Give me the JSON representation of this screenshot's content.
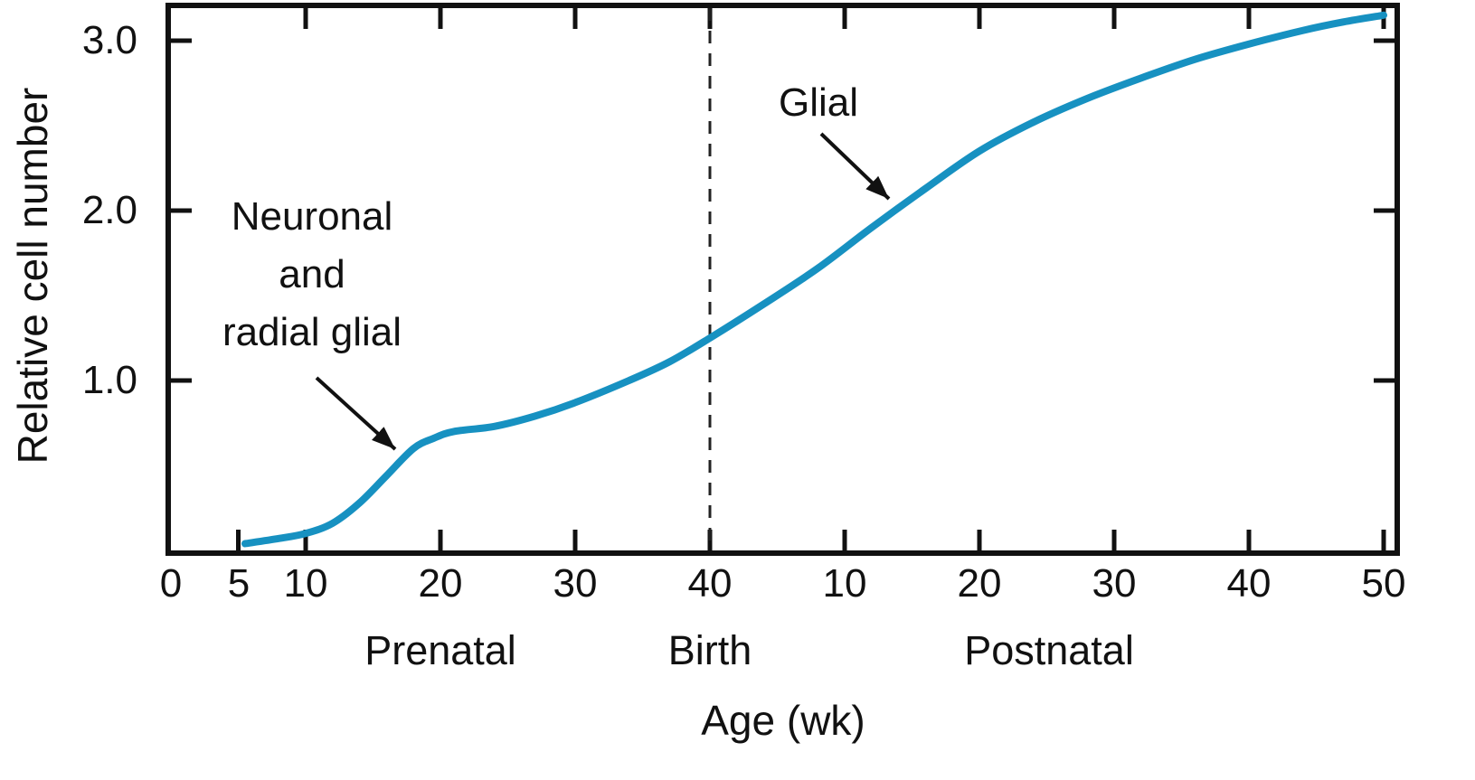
{
  "chart_data": {
    "type": "line",
    "title": "",
    "xlabel": "Age (wk)",
    "ylabel": "Relative cell number",
    "ylim": [
      0,
      3.3
    ],
    "grid": false,
    "x_axis": {
      "note": "Continuous age axis: prenatal weeks 0-40, then postnatal weeks 10-50 (plotted as 40 + postnatal week). Birth marked by dashed line at 40.",
      "tick_labels": [
        "0",
        "5",
        "10",
        "20",
        "30",
        "40",
        "10",
        "20",
        "30",
        "40",
        "50"
      ],
      "tick_units": [
        0,
        5,
        10,
        20,
        30,
        40,
        50,
        60,
        70,
        80,
        90
      ]
    },
    "y_tick_labels": [
      "3.0",
      "2.0",
      "1.0"
    ],
    "section_labels": [
      "Prenatal",
      "Birth",
      "Postnatal"
    ],
    "birth_line_unit": 40,
    "series": [
      {
        "name": "Relative cell number",
        "color": "#1791c1",
        "points": [
          [
            5.5,
            0.04
          ],
          [
            8,
            0.07
          ],
          [
            10,
            0.1
          ],
          [
            12,
            0.16
          ],
          [
            14,
            0.28
          ],
          [
            16,
            0.44
          ],
          [
            18,
            0.6
          ],
          [
            19.5,
            0.66
          ],
          [
            21,
            0.7
          ],
          [
            24,
            0.73
          ],
          [
            27,
            0.79
          ],
          [
            30,
            0.87
          ],
          [
            34,
            1.0
          ],
          [
            37,
            1.11
          ],
          [
            40,
            1.25
          ],
          [
            44,
            1.45
          ],
          [
            48,
            1.66
          ],
          [
            52,
            1.9
          ],
          [
            56,
            2.13
          ],
          [
            60,
            2.35
          ],
          [
            64,
            2.52
          ],
          [
            68,
            2.66
          ],
          [
            72,
            2.78
          ],
          [
            76,
            2.89
          ],
          [
            80,
            2.98
          ],
          [
            84,
            3.06
          ],
          [
            87,
            3.11
          ],
          [
            90,
            3.15
          ]
        ]
      }
    ],
    "annotations": [
      {
        "lines": [
          "Neuronal",
          "and",
          "radial glial"
        ]
      },
      {
        "label": "Glial"
      }
    ]
  }
}
